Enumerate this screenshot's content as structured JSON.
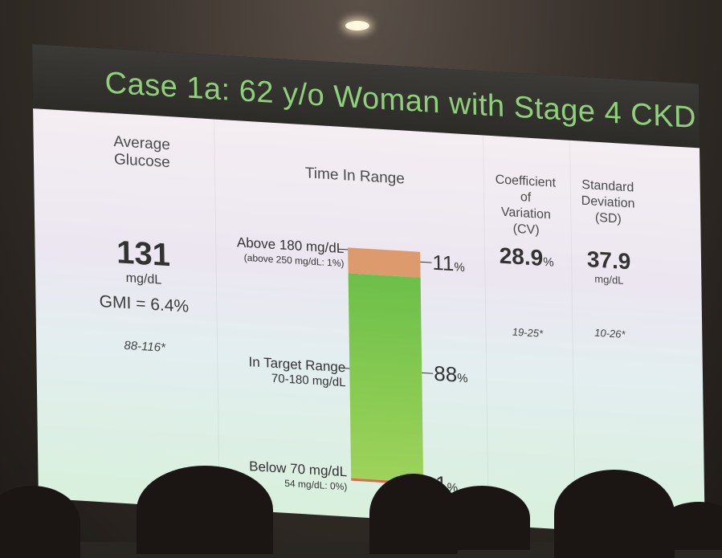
{
  "slide": {
    "title": "Case 1a: 62 y/o Woman with Stage 4 CKD",
    "average_glucose": {
      "header_line1": "Average",
      "header_line2": "Glucose",
      "value": "131",
      "unit": "mg/dL",
      "gmi": "GMI = 6.4%",
      "range": "88-116*"
    },
    "time_in_range": {
      "header": "Time In Range",
      "above_label": "Above 180 mg/dL",
      "above_sub": "(above 250 mg/dL: 1%)",
      "above_pct": "11",
      "target_label": "In Target Range",
      "target_sub": "70-180 mg/dL",
      "target_pct": "88",
      "below_label": "Below 70 mg/dL",
      "below_sub": "54 mg/dL: 0%)",
      "below_pct": "1",
      "pct_unit": "%"
    },
    "cv": {
      "header_line1": "Coefficient",
      "header_line2": "of",
      "header_line3": "Variation",
      "header_line4": "(CV)",
      "value": "28.9",
      "unit": "%",
      "range": "19-25*"
    },
    "sd": {
      "header_line1": "Standard",
      "header_line2": "Deviation",
      "header_line3": "(SD)",
      "value": "37.9",
      "unit": "mg/dL",
      "range": "10-26*"
    }
  },
  "colors": {
    "title_green": "#8fd17a",
    "above_orange": "#dd9a6c",
    "target_green": "#6cbf4a",
    "below_red": "#d46a4e"
  }
}
